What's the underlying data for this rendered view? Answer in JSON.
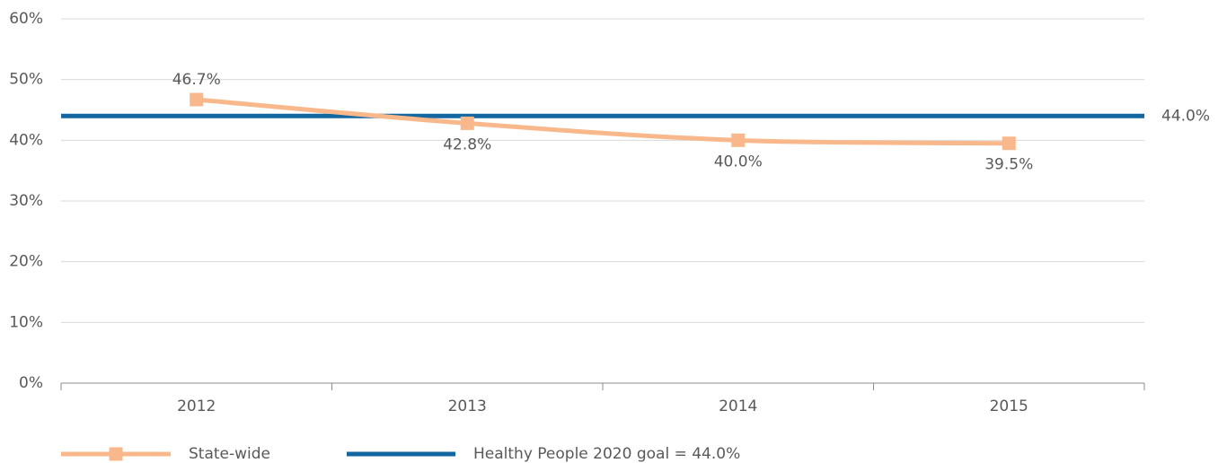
{
  "chart_data": {
    "type": "line",
    "categories": [
      "2012",
      "2013",
      "2014",
      "2015"
    ],
    "series": [
      {
        "name": "State-wide",
        "color": "#f8b88b",
        "values": [
          46.7,
          42.8,
          40.0,
          39.5
        ],
        "value_labels": [
          "46.7%",
          "42.8%",
          "40.0%",
          "39.5%"
        ]
      }
    ],
    "goal": {
      "name": "Healthy People 2020 goal = 44.0%",
      "color": "#1267a1",
      "value": 44.0,
      "value_label": "44.0%"
    },
    "ylim": [
      0,
      60
    ],
    "yticks": [
      {
        "value": 0,
        "label": "0%"
      },
      {
        "value": 10,
        "label": "10%"
      },
      {
        "value": 20,
        "label": "20%"
      },
      {
        "value": 30,
        "label": "30%"
      },
      {
        "value": 40,
        "label": "40%"
      },
      {
        "value": 50,
        "label": "50%"
      },
      {
        "value": 60,
        "label": "60%"
      }
    ],
    "grid": true,
    "legend": "bottom"
  }
}
